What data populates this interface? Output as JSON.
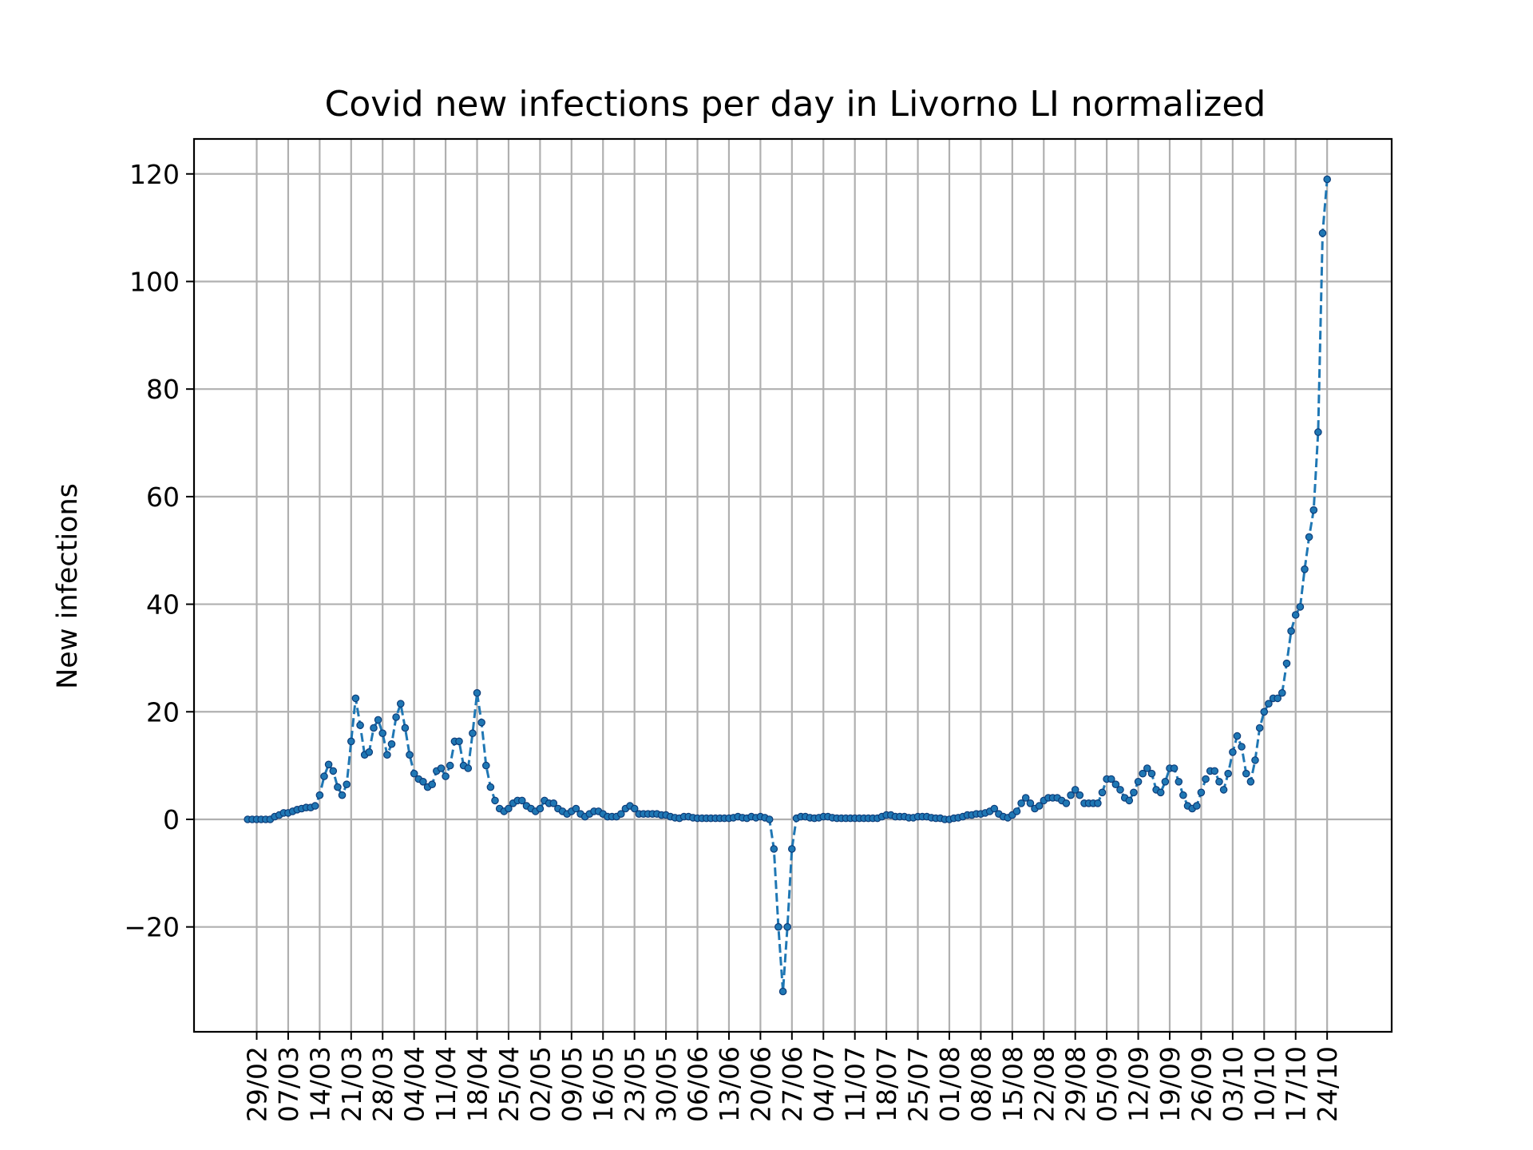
{
  "chart_data": {
    "type": "line",
    "title": "Covid new infections per day in Livorno LI normalized",
    "xlabel": "",
    "ylabel": "New infections",
    "ylim": [
      -39.5,
      126.5
    ],
    "yticks": [
      -20,
      0,
      20,
      40,
      60,
      80,
      100,
      120
    ],
    "ytick_labels": [
      "−20",
      "0",
      "20",
      "40",
      "60",
      "80",
      "100",
      "120"
    ],
    "xticks": [
      "29/02",
      "07/03",
      "14/03",
      "21/03",
      "28/03",
      "04/04",
      "11/04",
      "18/04",
      "25/04",
      "02/05",
      "09/05",
      "16/05",
      "23/05",
      "30/05",
      "06/06",
      "13/06",
      "20/06",
      "27/06",
      "04/07",
      "11/07",
      "18/07",
      "25/07",
      "01/08",
      "08/08",
      "15/08",
      "22/08",
      "29/08",
      "05/09",
      "12/09",
      "19/09",
      "26/09",
      "03/10",
      "10/10",
      "17/10",
      "24/10"
    ],
    "xtick_start": "2020-02-29",
    "grid": true,
    "series": [
      {
        "style": "dashed line with dot markers",
        "color": "#1f77b4",
        "x_start": "2020-02-27",
        "values": [
          0,
          0,
          0,
          0,
          0,
          0,
          0.5,
          0.8,
          1.2,
          1.2,
          1.5,
          1.8,
          2.0,
          2.2,
          2.2,
          2.5,
          4.5,
          8.0,
          10.2,
          9.0,
          6.0,
          4.5,
          6.5,
          14.5,
          22.5,
          17.5,
          12.0,
          12.5,
          17.0,
          18.5,
          16.0,
          12.0,
          14.0,
          19.0,
          21.5,
          17.0,
          12.0,
          8.5,
          7.5,
          7.0,
          6.0,
          6.5,
          9.0,
          9.5,
          8.0,
          10.0,
          14.5,
          14.5,
          10.0,
          9.5,
          16.0,
          23.5,
          18.0,
          10.0,
          6.0,
          3.5,
          2.0,
          1.5,
          2.0,
          3.0,
          3.5,
          3.5,
          2.5,
          2.0,
          1.5,
          2.0,
          3.5,
          3.0,
          3.0,
          2.0,
          1.5,
          1.0,
          1.5,
          2.0,
          1.0,
          0.5,
          1.0,
          1.5,
          1.5,
          1.0,
          0.5,
          0.5,
          0.5,
          1.0,
          2.0,
          2.5,
          2.0,
          1.0,
          1.0,
          1.0,
          1.0,
          1.0,
          0.8,
          0.8,
          0.5,
          0.3,
          0.2,
          0.5,
          0.5,
          0.3,
          0.2,
          0.2,
          0.2,
          0.2,
          0.2,
          0.2,
          0.2,
          0.2,
          0.3,
          0.5,
          0.3,
          0.2,
          0.5,
          0.3,
          0.5,
          0.3,
          0,
          -5.5,
          -20,
          -32,
          -20,
          -5.5,
          0.2,
          0.5,
          0.5,
          0.3,
          0.2,
          0.3,
          0.5,
          0.5,
          0.3,
          0.2,
          0.2,
          0.2,
          0.2,
          0.2,
          0.2,
          0.2,
          0.2,
          0.2,
          0.2,
          0.5,
          0.8,
          0.8,
          0.5,
          0.5,
          0.5,
          0.3,
          0.3,
          0.5,
          0.5,
          0.5,
          0.3,
          0.2,
          0.2,
          0,
          0,
          0.2,
          0.3,
          0.5,
          0.8,
          0.8,
          1.0,
          1.0,
          1.2,
          1.5,
          2.0,
          1.0,
          0.5,
          0.3,
          0.8,
          1.5,
          3.0,
          4.0,
          3.0,
          2.0,
          2.5,
          3.5,
          4.0,
          4.0,
          4.0,
          3.5,
          3.0,
          4.5,
          5.5,
          4.5,
          3.0,
          3.0,
          3.0,
          3.0,
          5.0,
          7.5,
          7.5,
          6.5,
          5.5,
          4.0,
          3.5,
          5.0,
          7.0,
          8.5,
          9.5,
          8.5,
          5.5,
          5.0,
          7.0,
          9.5,
          9.5,
          7.0,
          4.5,
          2.5,
          2.0,
          2.5,
          5.0,
          7.5,
          9.0,
          9.0,
          7.0,
          5.5,
          8.5,
          12.5,
          15.5,
          13.5,
          8.5,
          7.0,
          11.0,
          17.0,
          20.0,
          21.5,
          22.5,
          22.5,
          23.5,
          29.0,
          35.0,
          38.0,
          39.5,
          46.5,
          52.5,
          57.5,
          72.0,
          109.0,
          119.0
        ]
      }
    ]
  }
}
